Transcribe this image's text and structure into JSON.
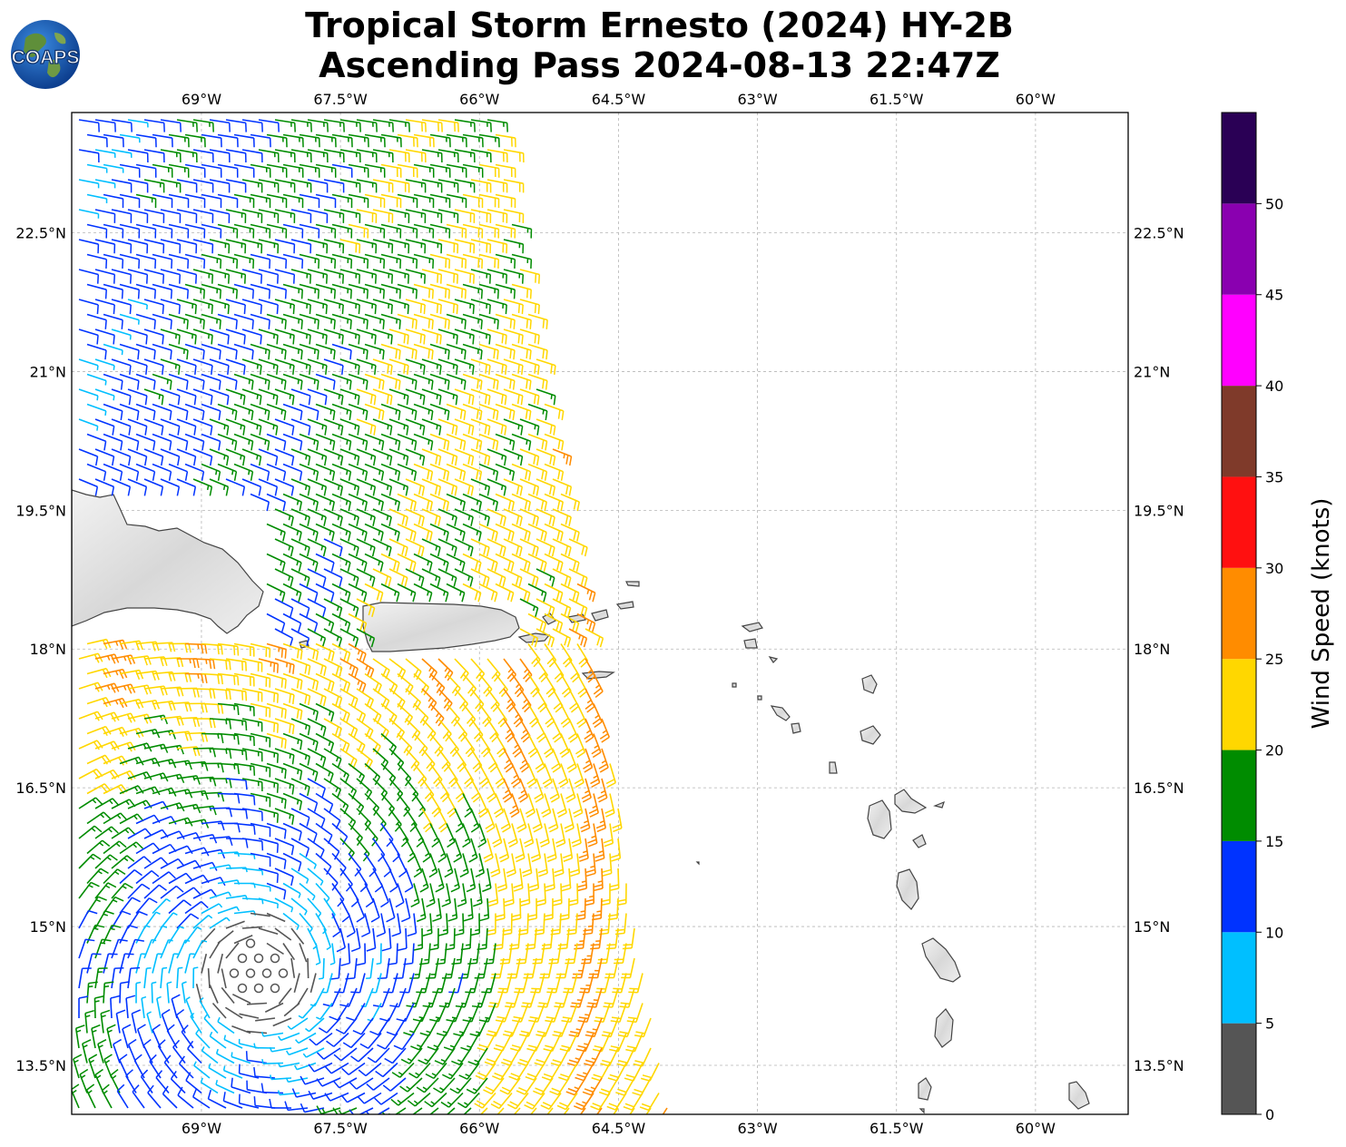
{
  "header": {
    "title_line1": "Tropical Storm Ernesto (2024) HY-2B",
    "title_line2": "Ascending Pass 2024-08-13 22:47Z"
  },
  "logo": {
    "text": "COAPS",
    "icon": "globe-logo-icon"
  },
  "map": {
    "lon_ticks": [
      "69°W",
      "67.5°W",
      "66°W",
      "64.5°W",
      "63°W",
      "61.5°W",
      "60°W"
    ],
    "lat_ticks": [
      "22.5°N",
      "21°N",
      "19.5°N",
      "18°N",
      "16.5°N",
      "15°N",
      "13.5°N"
    ],
    "lon_range": [
      -70.4,
      -59.0
    ],
    "lat_range": [
      12.97,
      23.8
    ],
    "grid": "dashed",
    "land_color": "#dcdcdc",
    "coast_color": "#444444"
  },
  "colorbar": {
    "label": "Wind Speed (knots)",
    "ticks": [
      "0",
      "5",
      "10",
      "15",
      "20",
      "25",
      "30",
      "35",
      "40",
      "45",
      "50"
    ],
    "bins": [
      {
        "min": 0,
        "max": 5,
        "color": "#555555"
      },
      {
        "min": 5,
        "max": 10,
        "color": "#00bfff"
      },
      {
        "min": 10,
        "max": 15,
        "color": "#0033ff"
      },
      {
        "min": 15,
        "max": 20,
        "color": "#008c00"
      },
      {
        "min": 20,
        "max": 25,
        "color": "#ffd700"
      },
      {
        "min": 25,
        "max": 30,
        "color": "#ff8c00"
      },
      {
        "min": 30,
        "max": 35,
        "color": "#ff1010"
      },
      {
        "min": 35,
        "max": 40,
        "color": "#7f3a2a"
      },
      {
        "min": 40,
        "max": 45,
        "color": "#ff00ff"
      },
      {
        "min": 45,
        "max": 50,
        "color": "#8a00b0"
      },
      {
        "min": 50,
        "max": 55,
        "color": "#2a0055"
      }
    ]
  },
  "storm_center": {
    "lon": -68.4,
    "lat": 14.5
  }
}
